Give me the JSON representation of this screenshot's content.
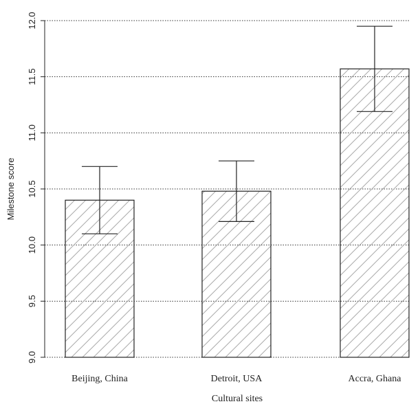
{
  "chart_data": {
    "type": "bar",
    "title": "",
    "xlabel": "Cultural sites",
    "ylabel": "Milestone score",
    "categories": [
      "Beijing, China",
      "Detroit, USA",
      "Accra, Ghana"
    ],
    "values": [
      10.4,
      10.48,
      11.57
    ],
    "error_low": [
      10.1,
      10.21,
      11.19
    ],
    "error_high": [
      10.7,
      10.75,
      11.95
    ],
    "ylim": [
      9.0,
      12.0
    ],
    "yticks": [
      "9.0",
      "9.5",
      "10.0",
      "10.5",
      "11.0",
      "11.5",
      "12.0"
    ],
    "grid": true,
    "grid_style": "dotted-horizontal",
    "bar_fill": "hatched-diagonal",
    "colors": {
      "bar_edge": "#222222",
      "hatch": "#aaaaaa",
      "grid": "#333333",
      "axis": "#222222"
    }
  }
}
